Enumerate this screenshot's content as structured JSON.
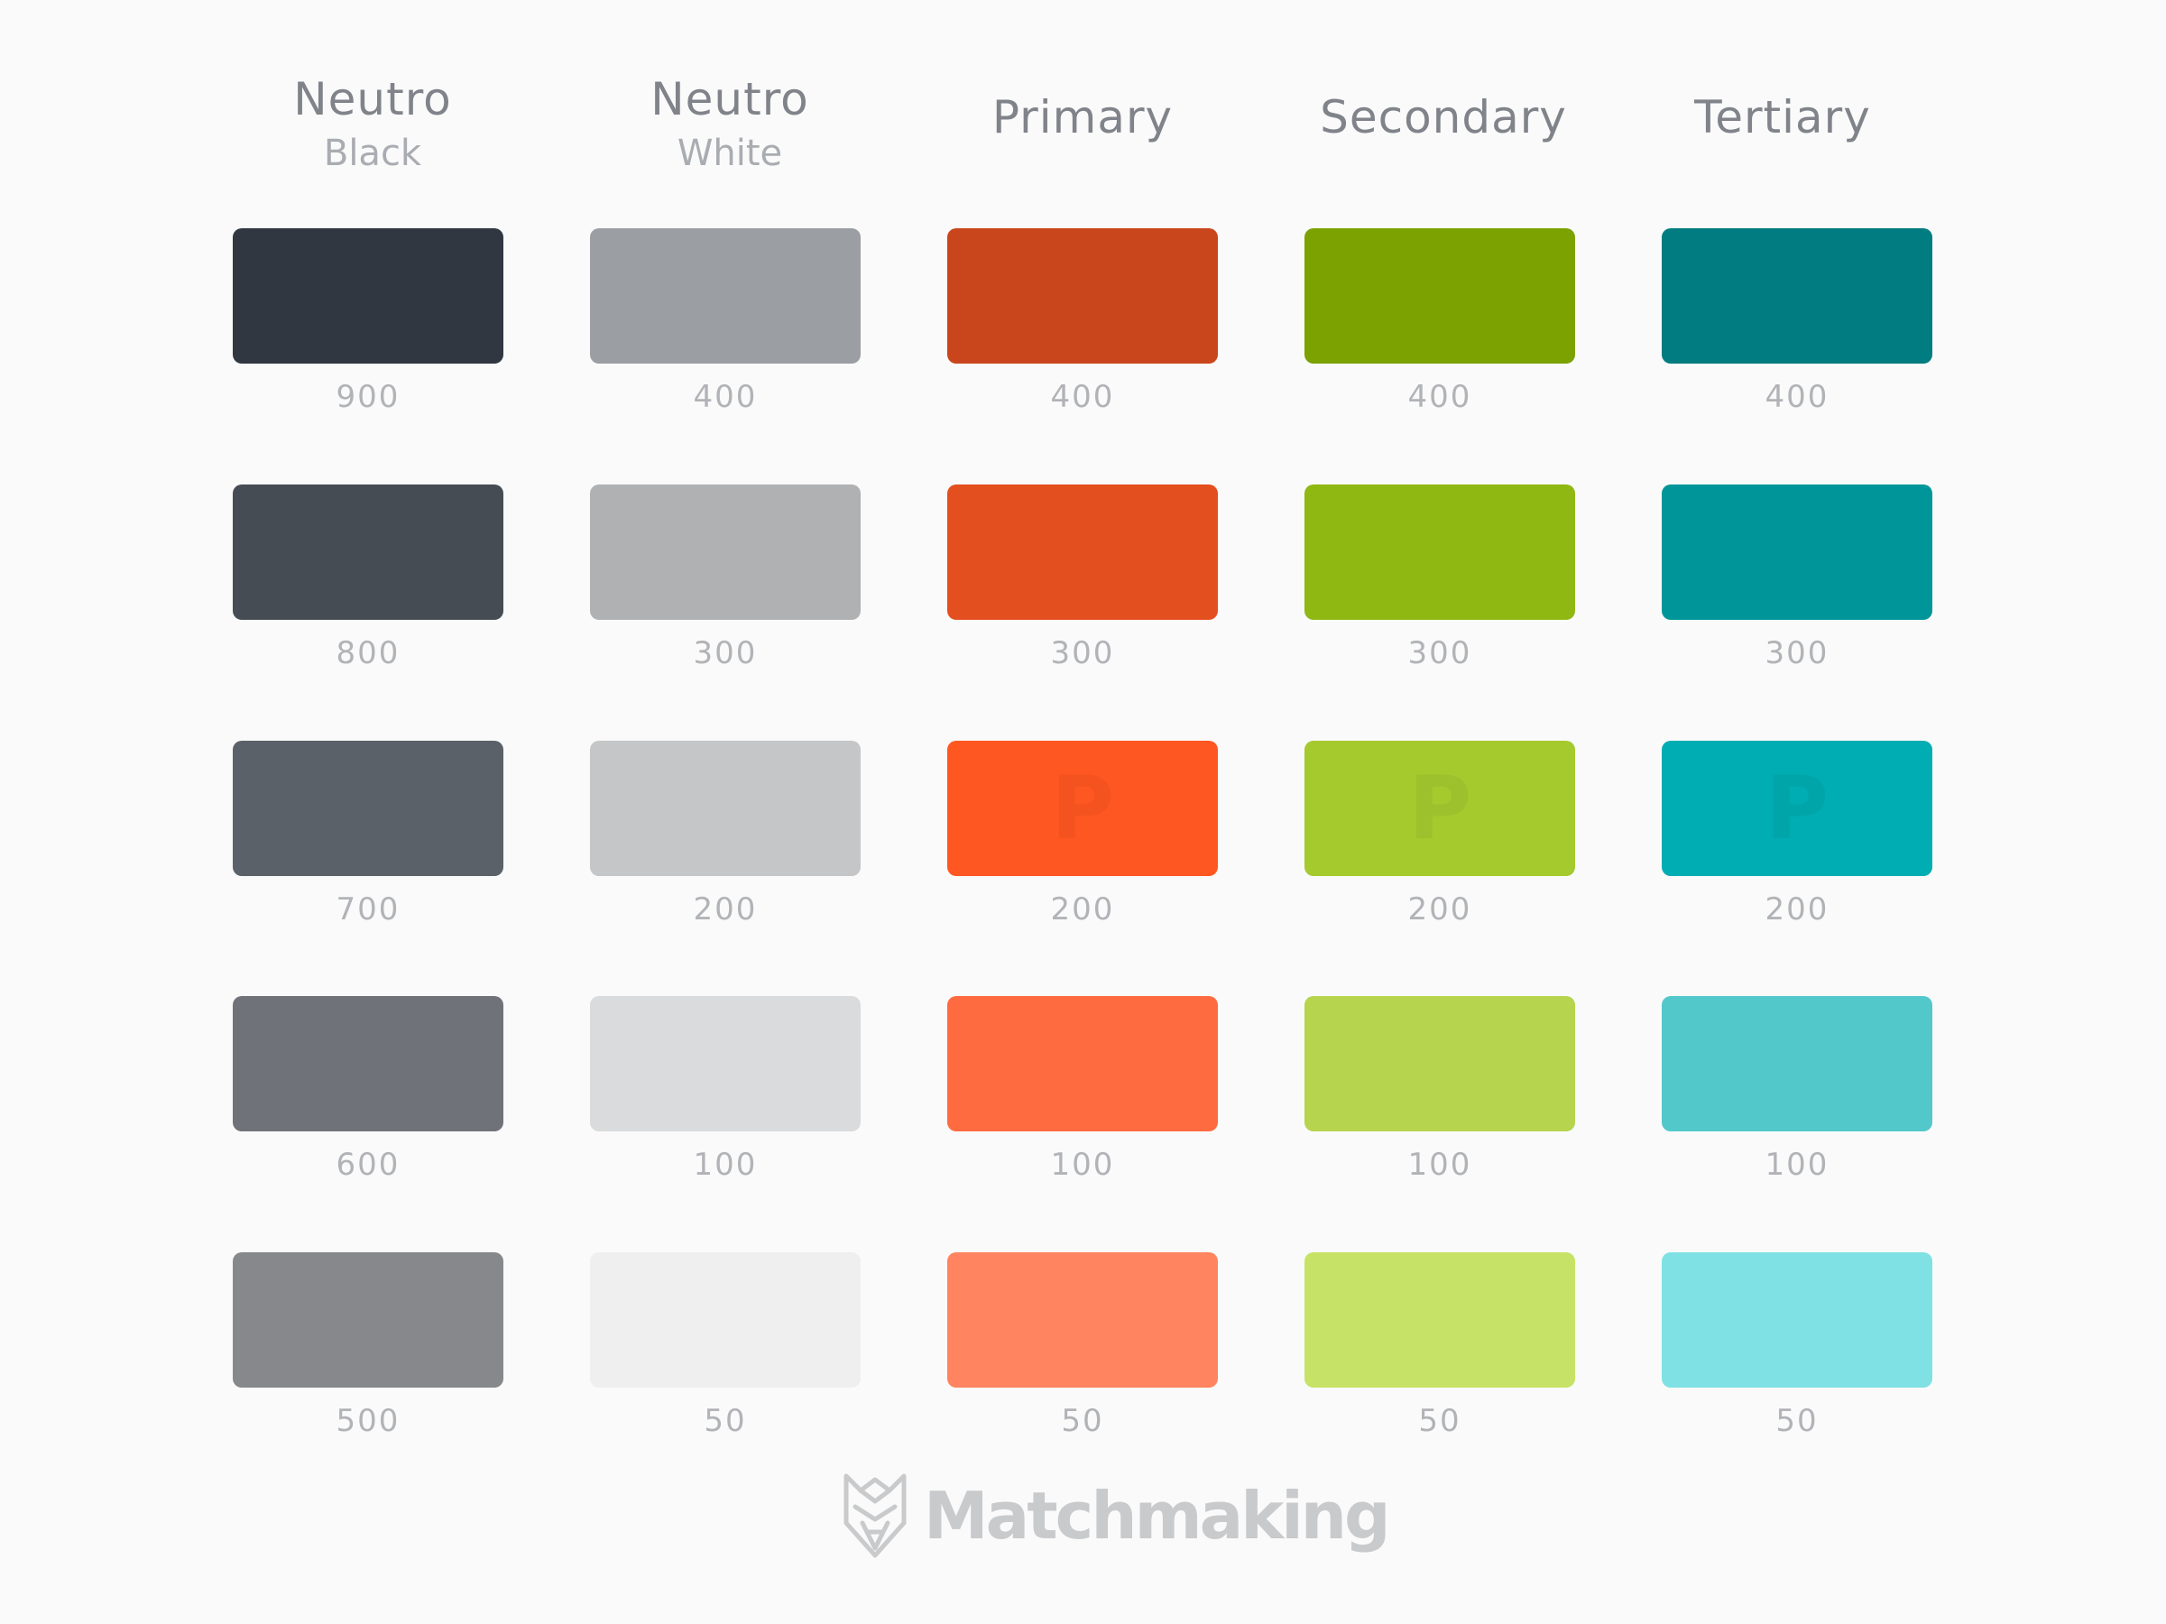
{
  "columns": [
    {
      "title": "Neutro",
      "subtitle": "Black",
      "swatches": [
        {
          "label": "900",
          "color": "#303741"
        },
        {
          "label": "800",
          "color": "#464c53"
        },
        {
          "label": "700",
          "color": "#5b6168"
        },
        {
          "label": "600",
          "color": "#6f7379"
        },
        {
          "label": "500",
          "color": "#86888c"
        }
      ]
    },
    {
      "title": "Neutro",
      "subtitle": "White",
      "swatches": [
        {
          "label": "400",
          "color": "#9b9ea2"
        },
        {
          "label": "300",
          "color": "#afb1b3"
        },
        {
          "label": "200",
          "color": "#c5c6c7"
        },
        {
          "label": "100",
          "color": "#dadbdc"
        },
        {
          "label": "50",
          "color": "#efefef"
        }
      ]
    },
    {
      "title": "Primary",
      "subtitle": "",
      "swatches": [
        {
          "label": "400",
          "color": "#c9451c"
        },
        {
          "label": "300",
          "color": "#e44f20"
        },
        {
          "label": "200",
          "color": "#ff5722",
          "mark": "P"
        },
        {
          "label": "100",
          "color": "#ff6b41"
        },
        {
          "label": "50",
          "color": "#ff845f"
        }
      ]
    },
    {
      "title": "Secondary",
      "subtitle": "",
      "swatches": [
        {
          "label": "400",
          "color": "#7ca201"
        },
        {
          "label": "300",
          "color": "#8fb813"
        },
        {
          "label": "200",
          "color": "#a5ca2e",
          "mark": "P"
        },
        {
          "label": "100",
          "color": "#b6d44d"
        },
        {
          "label": "50",
          "color": "#c7e367"
        }
      ]
    },
    {
      "title": "Tertiary",
      "subtitle": "",
      "swatches": [
        {
          "label": "400",
          "color": "#017c80"
        },
        {
          "label": "300",
          "color": "#009699"
        },
        {
          "label": "200",
          "color": "#00adb2",
          "mark": "P"
        },
        {
          "label": "100",
          "color": "#53c8cb"
        },
        {
          "label": "50",
          "color": "#80e1e4"
        }
      ]
    }
  ],
  "logo": {
    "wordmark": "Matchmaking",
    "icon": "wolf-head-icon",
    "color": "#c9cacc"
  }
}
